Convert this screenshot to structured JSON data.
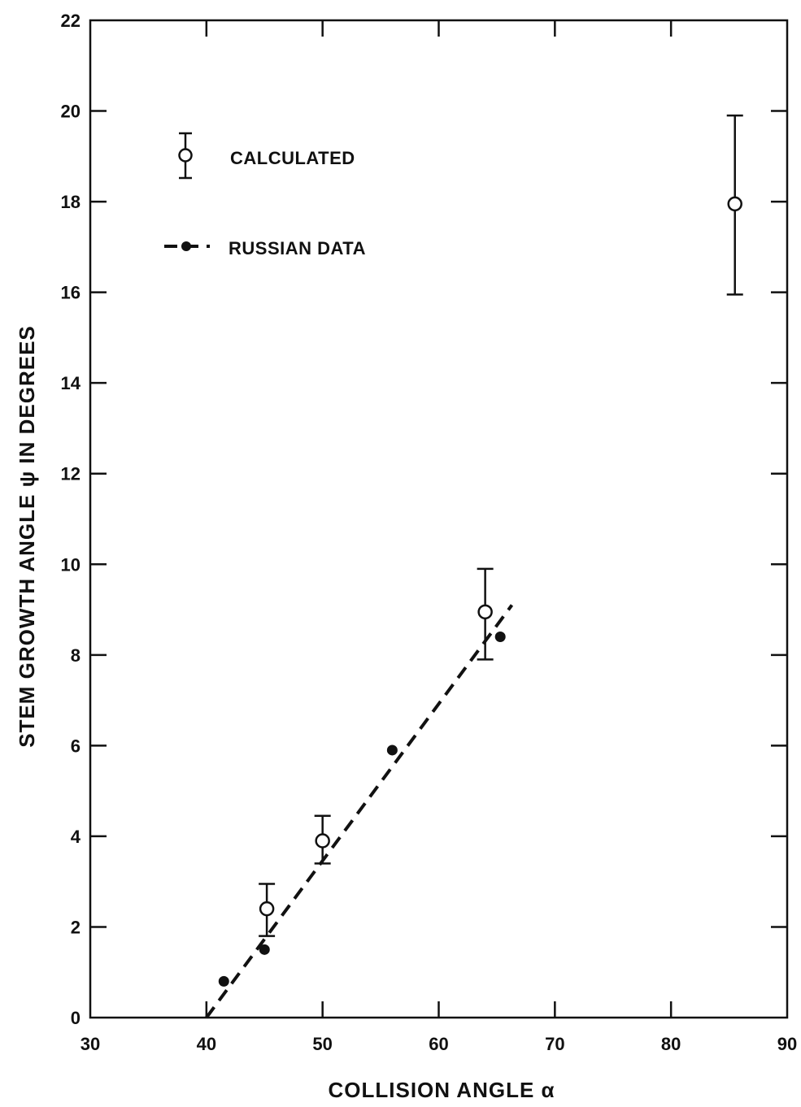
{
  "chart_data": {
    "type": "scatter",
    "title": "",
    "xlabel": "COLLISION ANGLE α",
    "ylabel": "STEM GROWTH ANGLE ψ IN DEGREES",
    "xlim": [
      30,
      90
    ],
    "ylim": [
      0,
      22
    ],
    "xticks": [
      30,
      40,
      50,
      60,
      70,
      80,
      90
    ],
    "yticks": [
      0,
      2,
      4,
      6,
      8,
      10,
      12,
      14,
      16,
      18,
      20,
      22
    ],
    "grid": false,
    "legend_position": "top-left",
    "series": [
      {
        "name": "CALCULATED",
        "marker": "open-circle",
        "error_bars": true,
        "points": [
          {
            "x": 45.2,
            "y": 2.4,
            "ylow": 1.8,
            "yhigh": 2.95
          },
          {
            "x": 50.0,
            "y": 3.9,
            "ylow": 3.4,
            "yhigh": 4.45
          },
          {
            "x": 64.0,
            "y": 8.95,
            "ylow": 7.9,
            "yhigh": 9.9
          },
          {
            "x": 85.5,
            "y": 17.95,
            "ylow": 15.95,
            "yhigh": 19.9
          }
        ]
      },
      {
        "name": "RUSSIAN DATA",
        "marker": "filled-dot",
        "line": "dashed",
        "points": [
          {
            "x": 41.5,
            "y": 0.8
          },
          {
            "x": 45.0,
            "y": 1.5
          },
          {
            "x": 50.0,
            "y": 3.9
          },
          {
            "x": 56.0,
            "y": 5.9
          },
          {
            "x": 65.3,
            "y": 8.4
          }
        ],
        "fit_line": [
          {
            "x": 40.0,
            "y": 0.0
          },
          {
            "x": 66.3,
            "y": 9.1
          }
        ]
      }
    ]
  }
}
